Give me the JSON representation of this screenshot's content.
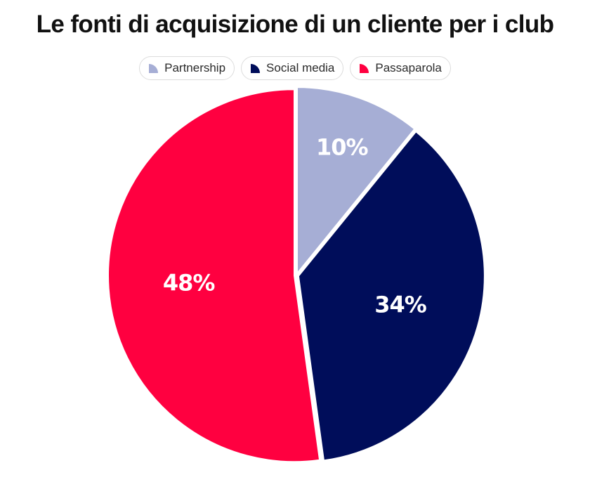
{
  "chart_data": {
    "type": "pie",
    "title": "Le fonti di acquisizione di un cliente per i club",
    "legend_position": "top-center",
    "categories": [
      "Partnership",
      "Social media",
      "Passaparola"
    ],
    "values": [
      10,
      34,
      48
    ],
    "labels": [
      "10%",
      "34%",
      "48%"
    ],
    "colors": [
      "#a6aed5",
      "#000d5a",
      "#ff0040"
    ]
  }
}
